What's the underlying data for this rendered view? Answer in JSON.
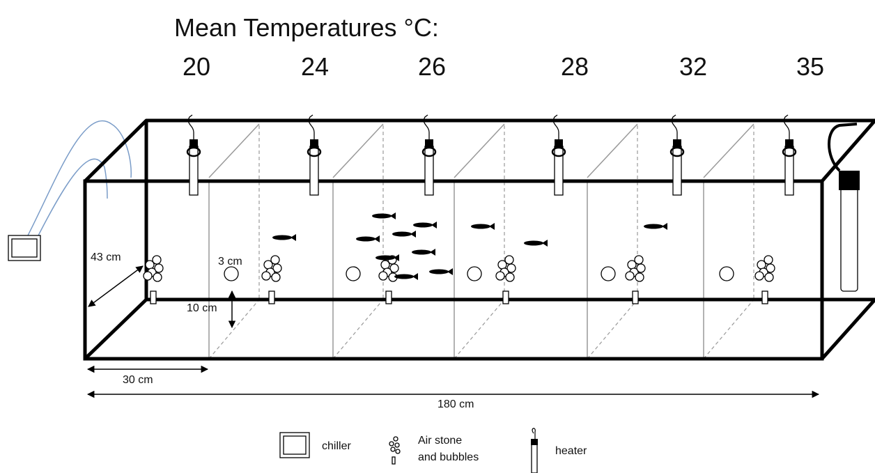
{
  "header": {
    "title": "Mean Temperatures °C:",
    "temperatures": [
      "20",
      "24",
      "26",
      "28",
      "32",
      "35"
    ]
  },
  "dimensions": {
    "depth": "43 cm",
    "bubble": "3 cm",
    "height": "10 cm",
    "section_width": "30 cm",
    "total_length": "180 cm"
  },
  "legend": {
    "chiller": "chiller",
    "air_stone": [
      "Air stone",
      "and bubbles"
    ],
    "heater": "heater"
  }
}
